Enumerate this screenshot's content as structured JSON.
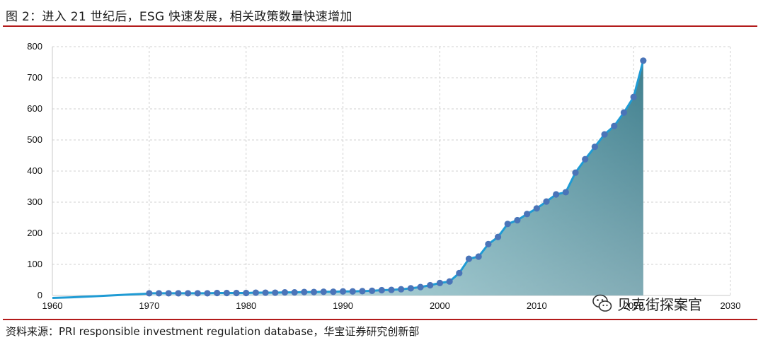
{
  "figure": {
    "title": "图 2：进入 21 世纪后，ESG 快速发展，相关政策数量快速增加",
    "source": "资料来源：PRI responsible investment regulation database，华宝证券研究创新部",
    "watermark_text": "贝克街探案官",
    "watermark_icon": "wechat-icon"
  },
  "chart_data": {
    "type": "area",
    "title": "",
    "xlabel": "",
    "ylabel": "",
    "xlim": [
      1960,
      2030
    ],
    "ylim": [
      0,
      800
    ],
    "x_ticks": [
      1960,
      1970,
      1980,
      1990,
      2000,
      2010,
      2020,
      2030
    ],
    "y_ticks": [
      0,
      100,
      200,
      300,
      400,
      500,
      600,
      700,
      800
    ],
    "grid": true,
    "legend": "none",
    "series": [
      {
        "line_color": "#1f9bd4",
        "marker_color": "#4a74b8",
        "fill_colors": [
          "#cfe5e8",
          "#3f7f8e"
        ],
        "baseline_curve_x": [
          1960,
          1962,
          1964,
          1966,
          1968,
          1970
        ],
        "baseline_curve_y": [
          -8,
          -6,
          -3,
          0,
          3,
          6
        ],
        "x": [
          1970,
          1971,
          1972,
          1973,
          1974,
          1975,
          1976,
          1977,
          1978,
          1979,
          1980,
          1981,
          1982,
          1983,
          1984,
          1985,
          1986,
          1987,
          1988,
          1989,
          1990,
          1991,
          1992,
          1993,
          1994,
          1995,
          1996,
          1997,
          1998,
          1999,
          2000,
          2001,
          2002,
          2003,
          2004,
          2005,
          2006,
          2007,
          2008,
          2009,
          2010,
          2011,
          2012,
          2013,
          2014,
          2015,
          2016,
          2017,
          2018,
          2019,
          2020,
          2021
        ],
        "y": [
          7,
          7,
          7,
          7,
          7,
          7,
          7,
          8,
          8,
          8,
          8,
          9,
          9,
          9,
          10,
          10,
          11,
          11,
          12,
          12,
          13,
          13,
          14,
          15,
          17,
          18,
          20,
          23,
          27,
          33,
          40,
          45,
          72,
          118,
          125,
          165,
          188,
          230,
          242,
          262,
          280,
          302,
          325,
          332,
          395,
          438,
          478,
          518,
          545,
          588,
          638,
          755
        ]
      }
    ]
  }
}
